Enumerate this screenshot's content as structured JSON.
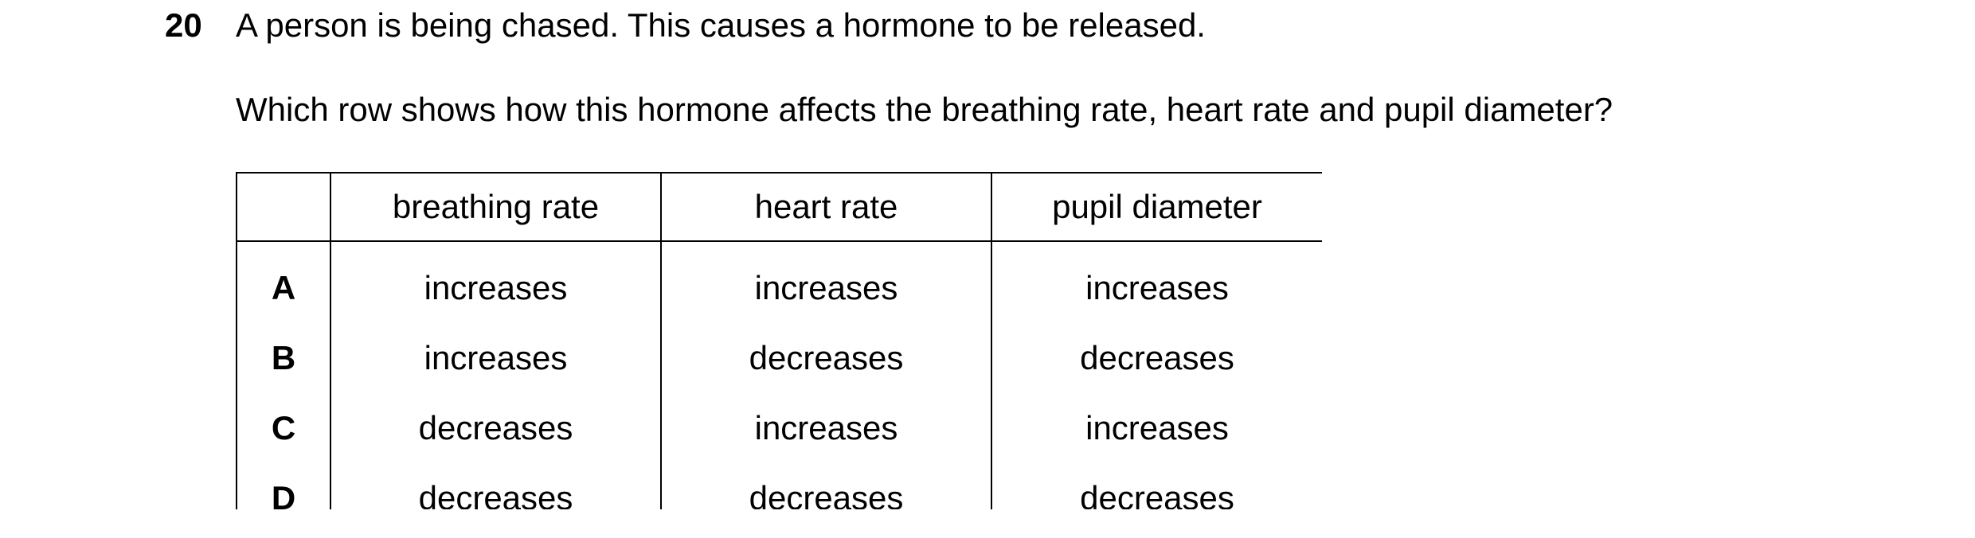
{
  "question": {
    "number": "20",
    "stem": "A person is being chased. This causes a hormone to be released.",
    "prompt": "Which row shows how this hormone affects the breathing rate, heart rate and pupil diameter?"
  },
  "table": {
    "headers": [
      "",
      "breathing rate",
      "heart rate",
      "pupil diameter"
    ],
    "rows": [
      {
        "label": "A",
        "breathing_rate": "increases",
        "heart_rate": "increases",
        "pupil_diameter": "increases"
      },
      {
        "label": "B",
        "breathing_rate": "increases",
        "heart_rate": "decreases",
        "pupil_diameter": "decreases"
      },
      {
        "label": "C",
        "breathing_rate": "decreases",
        "heart_rate": "increases",
        "pupil_diameter": "increases"
      },
      {
        "label": "D",
        "breathing_rate": "decreases",
        "heart_rate": "decreases",
        "pupil_diameter": "decreases"
      }
    ]
  }
}
